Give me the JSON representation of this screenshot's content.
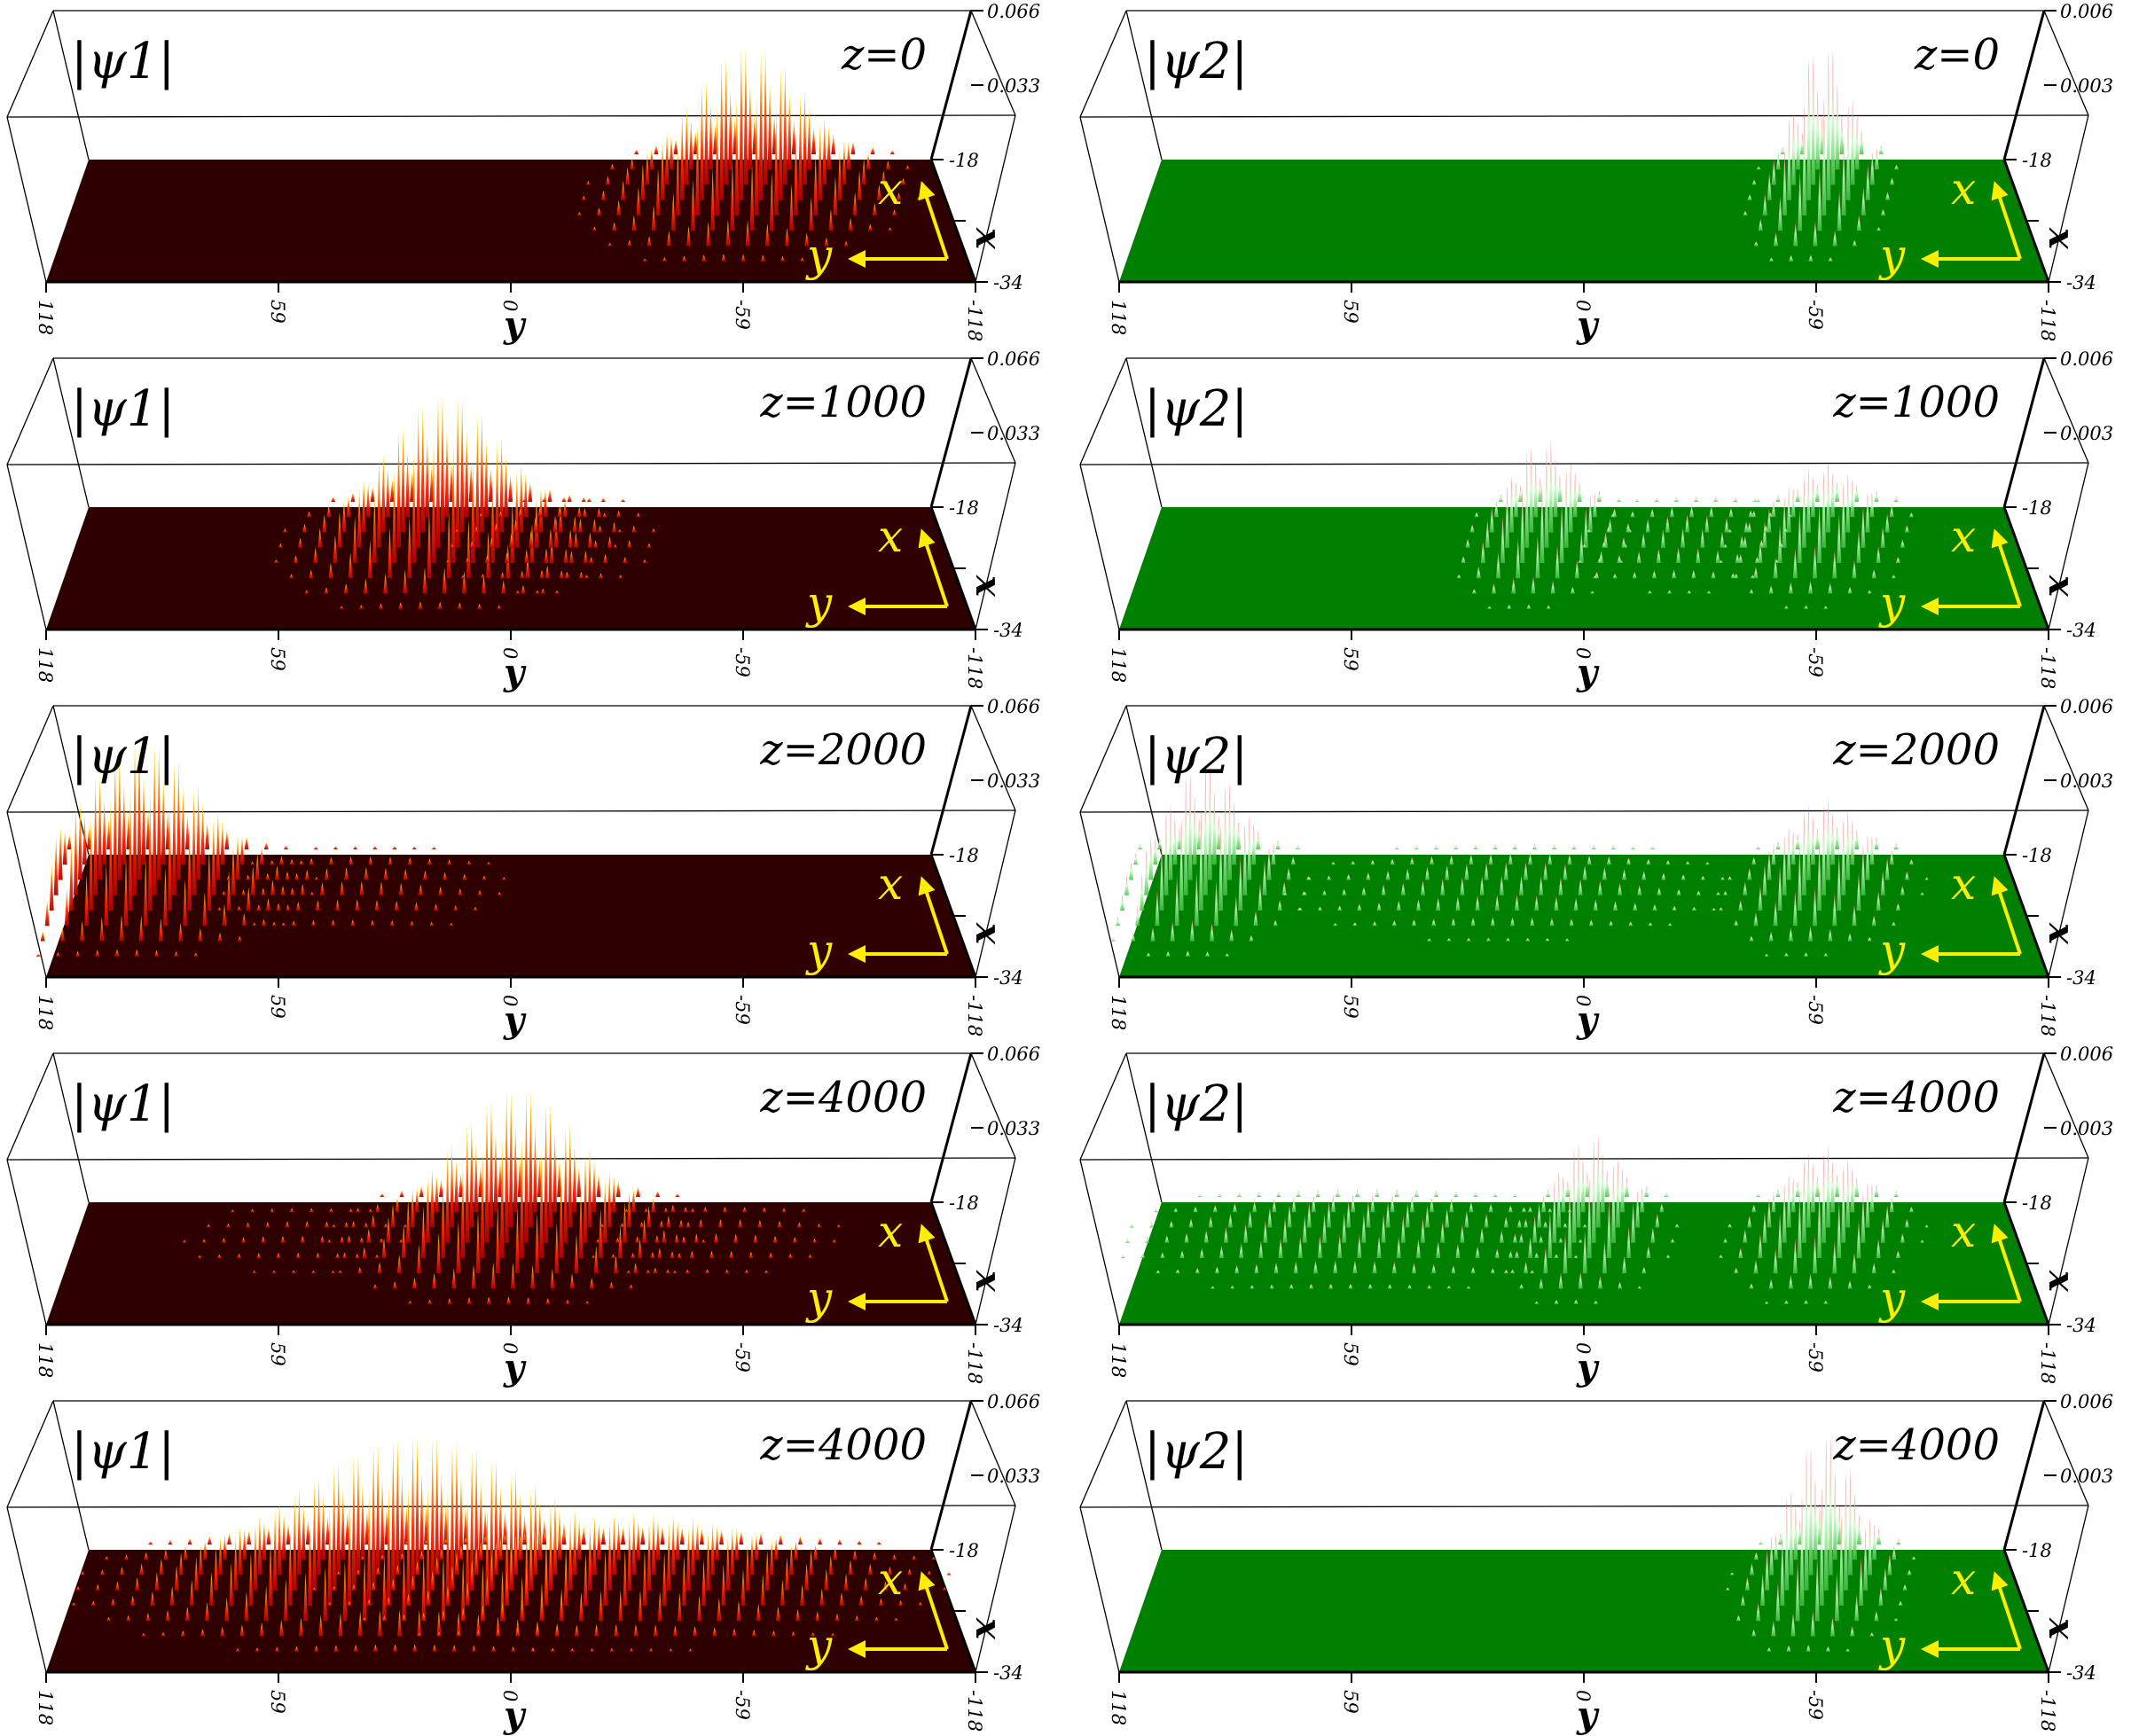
{
  "colors": {
    "psi1_floor": "#2e0000",
    "psi1_peak_low": "#ff2000",
    "psi1_peak_high": "#ffee00",
    "psi2_floor": "#008000",
    "psi2_peak_low": "#9aff9a",
    "psi2_peak_high": "#ff4040",
    "arrow": "#ffee00"
  },
  "axes": {
    "y_ticks": [
      "118",
      "59",
      "0",
      "-59",
      "-118"
    ],
    "x_ticks": [
      "-18",
      "-34"
    ],
    "y_label": "y",
    "x_label": "x",
    "arrow_x": "x",
    "arrow_y": "y"
  },
  "chart_data": [
    {
      "type": "surface",
      "field": "|ψ1|",
      "z_label": "z=0",
      "zlim": [
        0,
        0.066
      ],
      "z_ticks": [
        "0.066",
        "0.033"
      ],
      "lumps": [
        {
          "y": -59,
          "amplitude": 0.066,
          "width": 22
        }
      ]
    },
    {
      "type": "surface",
      "field": "|ψ2|",
      "z_label": "z=0",
      "zlim": [
        0,
        0.006
      ],
      "z_ticks": [
        "0.006",
        "0.003"
      ],
      "lumps": [
        {
          "y": -59,
          "amplitude": 0.006,
          "width": 10
        }
      ]
    },
    {
      "type": "surface",
      "field": "|ψ1|",
      "z_label": "z=1000",
      "zlim": [
        0,
        0.066
      ],
      "z_ticks": [
        "0.066",
        "0.033"
      ],
      "lumps": [
        {
          "y": 18,
          "amplitude": 0.066,
          "width": 22
        },
        {
          "y": -10,
          "amplitude": 0.008,
          "width": 20
        }
      ]
    },
    {
      "type": "surface",
      "field": "|ψ2|",
      "z_label": "z=1000",
      "zlim": [
        0,
        0.006
      ],
      "z_ticks": [
        "0.006",
        "0.003"
      ],
      "lumps": [
        {
          "y": 12,
          "amplitude": 0.004,
          "width": 12
        },
        {
          "y": -59,
          "amplitude": 0.003,
          "width": 14
        },
        {
          "y": -25,
          "amplitude": 0.0008,
          "width": 20
        }
      ]
    },
    {
      "type": "surface",
      "field": "|ψ1|",
      "z_label": "z=2000",
      "zlim": [
        0,
        0.066
      ],
      "z_ticks": [
        "0.066",
        "0.033"
      ],
      "lumps": [
        {
          "y": 95,
          "amplitude": 0.066,
          "width": 22
        },
        {
          "y": 40,
          "amplitude": 0.006,
          "width": 30
        }
      ]
    },
    {
      "type": "surface",
      "field": "|ψ2|",
      "z_label": "z=2000",
      "zlim": [
        0,
        0.006
      ],
      "z_ticks": [
        "0.006",
        "0.003"
      ],
      "lumps": [
        {
          "y": 98,
          "amplitude": 0.005,
          "width": 14
        },
        {
          "y": -59,
          "amplitude": 0.0035,
          "width": 14
        },
        {
          "y": 20,
          "amplitude": 0.0008,
          "width": 40
        }
      ]
    },
    {
      "type": "surface",
      "field": "|ψ1|",
      "z_label": "z=4000",
      "zlim": [
        0,
        0.066
      ],
      "z_ticks": [
        "0.066",
        "0.033"
      ],
      "lumps": [
        {
          "y": 0,
          "amplitude": 0.066,
          "width": 24
        },
        {
          "y": -50,
          "amplitude": 0.004,
          "width": 30
        },
        {
          "y": 55,
          "amplitude": 0.003,
          "width": 30
        }
      ]
    },
    {
      "type": "surface",
      "field": "|ψ2|",
      "z_label": "z=4000",
      "zlim": [
        0,
        0.006
      ],
      "z_ticks": [
        "0.006",
        "0.003"
      ],
      "lumps": [
        {
          "y": 0,
          "amplitude": 0.004,
          "width": 12
        },
        {
          "y": -59,
          "amplitude": 0.0035,
          "width": 14
        },
        {
          "y": 60,
          "amplitude": 0.0012,
          "width": 40
        }
      ]
    },
    {
      "type": "surface",
      "field": "|ψ1|",
      "z_label": "z=4000",
      "zlim": [
        0,
        0.066
      ],
      "z_ticks": [
        "0.066",
        "0.033"
      ],
      "lumps": [
        {
          "y": 25,
          "amplitude": 0.066,
          "width": 45
        },
        {
          "y": -30,
          "amplitude": 0.03,
          "width": 45
        }
      ]
    },
    {
      "type": "surface",
      "field": "|ψ2|",
      "z_label": "z=4000",
      "zlim": [
        0,
        0.006
      ],
      "z_ticks": [
        "0.006",
        "0.003"
      ],
      "lumps": [
        {
          "y": -59,
          "amplitude": 0.006,
          "width": 12
        }
      ]
    }
  ]
}
